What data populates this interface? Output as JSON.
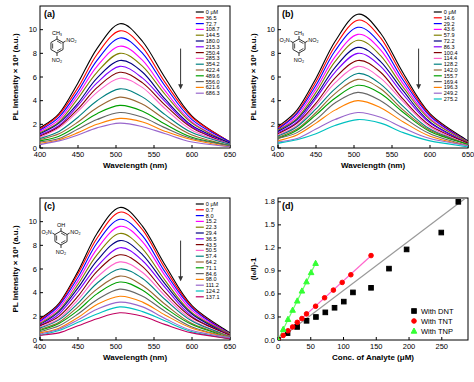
{
  "chart_data": [
    {
      "type": "line",
      "title": "(a)",
      "xlabel": "Wavelength (nm)",
      "ylabel": "PL Intensity × 10³ (a.u.)",
      "annotations": [
        "CH₃",
        "NO₂",
        "NO₂"
      ],
      "xlim": [
        400,
        650
      ],
      "xticks": [
        400,
        450,
        500,
        550,
        600,
        650
      ],
      "ylim": [
        0,
        12
      ],
      "yticks": [
        0,
        2,
        4,
        6,
        8,
        10
      ],
      "legend": "top-right",
      "x": [
        400,
        425,
        450,
        475,
        505,
        535,
        565,
        600,
        650
      ],
      "series": [
        {
          "name": "0 μM",
          "color": "#000000",
          "values": [
            1.7,
            2.9,
            5.5,
            8.4,
            10.5,
            9.0,
            5.9,
            2.7,
            0.5
          ]
        },
        {
          "name": "36.5",
          "color": "#ff0000",
          "values": [
            1.6,
            2.8,
            5.1,
            7.9,
            9.9,
            8.5,
            5.5,
            2.6,
            0.5
          ]
        },
        {
          "name": "72.7",
          "color": "#0000ff",
          "values": [
            1.5,
            2.6,
            4.8,
            7.4,
            9.3,
            8.0,
            5.2,
            2.4,
            0.5
          ]
        },
        {
          "name": "108.7",
          "color": "#ff00ff",
          "values": [
            1.4,
            2.4,
            4.5,
            6.9,
            8.6,
            7.4,
            4.8,
            2.2,
            0.4
          ]
        },
        {
          "name": "144.5",
          "color": "#808000",
          "values": [
            1.3,
            2.2,
            4.2,
            6.4,
            8.0,
            6.9,
            4.5,
            2.1,
            0.4
          ]
        },
        {
          "name": "180.0",
          "color": "#000080",
          "values": [
            1.2,
            2.1,
            3.8,
            5.9,
            7.4,
            6.4,
            4.1,
            1.9,
            0.4
          ]
        },
        {
          "name": "215.3",
          "color": "#8000ff",
          "values": [
            1.1,
            1.9,
            3.6,
            5.5,
            6.9,
            5.9,
            3.9,
            1.8,
            0.3
          ]
        },
        {
          "name": "250.4",
          "color": "#800000",
          "values": [
            1.0,
            1.8,
            3.3,
            5.1,
            6.4,
            5.5,
            3.6,
            1.7,
            0.3
          ]
        },
        {
          "name": "285.3",
          "color": "#ff66cc",
          "values": [
            0.9,
            1.7,
            3.1,
            4.7,
            5.9,
            5.1,
            3.3,
            1.5,
            0.3
          ]
        },
        {
          "name": "354.2",
          "color": "#008080",
          "values": [
            0.8,
            1.4,
            2.6,
            4.0,
            5.0,
            4.3,
            2.8,
            1.3,
            0.3
          ]
        },
        {
          "name": "422.4",
          "color": "#996633",
          "values": [
            0.7,
            1.2,
            2.2,
            3.4,
            4.3,
            3.7,
            2.4,
            1.1,
            0.2
          ]
        },
        {
          "name": "489.6",
          "color": "#00a000",
          "values": [
            0.6,
            1.0,
            1.9,
            2.9,
            3.6,
            3.1,
            2.0,
            0.9,
            0.2
          ]
        },
        {
          "name": "556.0",
          "color": "#666666",
          "values": [
            0.5,
            0.8,
            1.6,
            2.4,
            3.0,
            2.6,
            1.7,
            0.8,
            0.2
          ]
        },
        {
          "name": "621.6",
          "color": "#ff8000",
          "values": [
            0.4,
            0.7,
            1.3,
            2.0,
            2.5,
            2.2,
            1.4,
            0.7,
            0.1
          ]
        },
        {
          "name": "686.3",
          "color": "#9966cc",
          "values": [
            0.3,
            0.6,
            1.1,
            1.7,
            2.1,
            1.8,
            1.2,
            0.5,
            0.1
          ]
        }
      ]
    },
    {
      "type": "line",
      "title": "(b)",
      "xlabel": "Wavelength (nm)",
      "ylabel": "PL Intensity × 10³ (a.u.)",
      "annotations": [
        "CH₃",
        "O₂N",
        "NO₂",
        "NO₂"
      ],
      "xlim": [
        400,
        650
      ],
      "xticks": [
        400,
        450,
        500,
        550,
        600,
        650
      ],
      "ylim": [
        0,
        12
      ],
      "yticks": [
        0,
        2,
        4,
        6,
        8,
        10
      ],
      "legend": "top-right",
      "x": [
        400,
        425,
        450,
        475,
        505,
        535,
        565,
        600,
        650
      ],
      "series": [
        {
          "name": "0 μM",
          "color": "#000000",
          "values": [
            1.8,
            3.2,
            5.9,
            9.0,
            11.3,
            9.7,
            6.3,
            2.9,
            0.6
          ]
        },
        {
          "name": "14.6",
          "color": "#ff0000",
          "values": [
            1.7,
            3.0,
            5.6,
            8.6,
            10.8,
            9.3,
            6.0,
            2.8,
            0.5
          ]
        },
        {
          "name": "29.2",
          "color": "#0000ff",
          "values": [
            1.6,
            2.9,
            5.3,
            8.2,
            10.2,
            8.8,
            5.7,
            2.7,
            0.5
          ]
        },
        {
          "name": "43.6",
          "color": "#ff00ff",
          "values": [
            1.5,
            2.7,
            5.0,
            7.7,
            9.6,
            8.3,
            5.4,
            2.5,
            0.5
          ]
        },
        {
          "name": "57.9",
          "color": "#808000",
          "values": [
            1.5,
            2.5,
            4.7,
            7.3,
            9.1,
            7.8,
            5.1,
            2.4,
            0.5
          ]
        },
        {
          "name": "72.2",
          "color": "#000080",
          "values": [
            1.4,
            2.4,
            4.4,
            6.8,
            8.5,
            7.3,
            4.8,
            2.2,
            0.4
          ]
        },
        {
          "name": "86.3",
          "color": "#8000ff",
          "values": [
            1.3,
            2.2,
            4.2,
            6.4,
            8.0,
            6.9,
            4.5,
            2.1,
            0.4
          ]
        },
        {
          "name": "100.4",
          "color": "#800000",
          "values": [
            1.2,
            2.1,
            3.8,
            5.9,
            7.4,
            6.4,
            4.1,
            1.9,
            0.4
          ]
        },
        {
          "name": "114.4",
          "color": "#ff66cc",
          "values": [
            1.1,
            1.9,
            3.6,
            5.5,
            6.9,
            5.9,
            3.9,
            1.8,
            0.3
          ]
        },
        {
          "name": "128.2",
          "color": "#008080",
          "values": [
            1.0,
            1.8,
            3.3,
            5.0,
            6.3,
            5.4,
            3.5,
            1.6,
            0.3
          ]
        },
        {
          "name": "142.0",
          "color": "#996633",
          "values": [
            0.9,
            1.6,
            3.0,
            4.6,
            5.8,
            5.0,
            3.2,
            1.5,
            0.3
          ]
        },
        {
          "name": "155.7",
          "color": "#00a000",
          "values": [
            0.8,
            1.5,
            2.8,
            4.2,
            5.3,
            4.6,
            3.0,
            1.4,
            0.3
          ]
        },
        {
          "name": "169.4",
          "color": "#666666",
          "values": [
            0.8,
            1.3,
            2.4,
            3.8,
            4.7,
            4.0,
            2.6,
            1.2,
            0.2
          ]
        },
        {
          "name": "196.3",
          "color": "#ff8000",
          "values": [
            0.6,
            1.1,
            2.1,
            3.2,
            4.0,
            3.4,
            2.2,
            1.0,
            0.2
          ]
        },
        {
          "name": "249.2",
          "color": "#9966cc",
          "values": [
            0.5,
            0.8,
            1.6,
            2.4,
            3.0,
            2.6,
            1.7,
            0.8,
            0.2
          ]
        },
        {
          "name": "275.2",
          "color": "#00c0c0",
          "values": [
            0.4,
            0.7,
            1.2,
            1.9,
            2.4,
            2.1,
            1.3,
            0.6,
            0.1
          ]
        }
      ]
    },
    {
      "type": "line",
      "title": "(c)",
      "xlabel": "Wavelength (nm)",
      "ylabel": "PL Intensity × 10³ (a.u.)",
      "annotations": [
        "OH",
        "O₂N",
        "NO₂",
        "NO₂"
      ],
      "xlim": [
        400,
        650
      ],
      "xticks": [
        400,
        450,
        500,
        550,
        600,
        650
      ],
      "ylim": [
        0,
        12
      ],
      "yticks": [
        0,
        2,
        4,
        6,
        8,
        10
      ],
      "legend": "top-right",
      "x": [
        400,
        425,
        450,
        475,
        505,
        535,
        565,
        600,
        650
      ],
      "series": [
        {
          "name": "0 μM",
          "color": "#000000",
          "values": [
            1.8,
            3.1,
            5.8,
            9.0,
            11.2,
            9.6,
            6.3,
            2.9,
            0.6
          ]
        },
        {
          "name": "0.7",
          "color": "#ff0000",
          "values": [
            1.7,
            3.0,
            5.6,
            8.6,
            10.8,
            9.3,
            6.0,
            2.8,
            0.5
          ]
        },
        {
          "name": "8.0",
          "color": "#0000ff",
          "values": [
            1.6,
            2.9,
            5.3,
            8.2,
            10.2,
            8.8,
            5.7,
            2.7,
            0.5
          ]
        },
        {
          "name": "15.2",
          "color": "#ff00ff",
          "values": [
            1.5,
            2.7,
            5.0,
            7.7,
            9.6,
            8.3,
            5.4,
            2.5,
            0.5
          ]
        },
        {
          "name": "22.3",
          "color": "#808000",
          "values": [
            1.4,
            2.5,
            4.7,
            7.2,
            9.0,
            7.7,
            5.0,
            2.3,
            0.5
          ]
        },
        {
          "name": "29.4",
          "color": "#000080",
          "values": [
            1.3,
            2.4,
            4.4,
            6.7,
            8.4,
            7.2,
            4.7,
            2.2,
            0.4
          ]
        },
        {
          "name": "36.5",
          "color": "#8000ff",
          "values": [
            1.2,
            2.2,
            4.1,
            6.2,
            7.8,
            6.7,
            4.4,
            2.0,
            0.4
          ]
        },
        {
          "name": "43.5",
          "color": "#800000",
          "values": [
            1.2,
            2.0,
            3.7,
            5.8,
            7.2,
            6.2,
            4.0,
            1.9,
            0.4
          ]
        },
        {
          "name": "50.5",
          "color": "#ff66cc",
          "values": [
            1.1,
            1.8,
            3.4,
            5.3,
            6.6,
            5.7,
            3.7,
            1.7,
            0.3
          ]
        },
        {
          "name": "57.4",
          "color": "#008080",
          "values": [
            1.0,
            1.7,
            3.1,
            4.8,
            6.0,
            5.2,
            3.4,
            1.6,
            0.3
          ]
        },
        {
          "name": "64.2",
          "color": "#996633",
          "values": [
            0.9,
            1.5,
            2.8,
            4.3,
            5.4,
            4.6,
            3.0,
            1.4,
            0.3
          ]
        },
        {
          "name": "71.1",
          "color": "#00a000",
          "values": [
            0.8,
            1.4,
            2.5,
            3.9,
            4.9,
            4.2,
            2.7,
            1.3,
            0.2
          ]
        },
        {
          "name": "84.6",
          "color": "#666666",
          "values": [
            0.7,
            1.2,
            2.2,
            3.4,
            4.3,
            3.7,
            2.4,
            1.1,
            0.2
          ]
        },
        {
          "name": "98.0",
          "color": "#ff8000",
          "values": [
            0.6,
            1.0,
            1.9,
            3.0,
            3.7,
            3.2,
            2.1,
            1.0,
            0.2
          ]
        },
        {
          "name": "111.2",
          "color": "#9966cc",
          "values": [
            0.5,
            0.9,
            1.7,
            2.6,
            3.2,
            2.8,
            1.8,
            0.8,
            0.2
          ]
        },
        {
          "name": "124.2",
          "color": "#00c0c0",
          "values": [
            0.4,
            0.8,
            1.5,
            2.2,
            2.8,
            2.4,
            1.6,
            0.7,
            0.1
          ]
        },
        {
          "name": "137.1",
          "color": "#c00060",
          "values": [
            0.4,
            0.6,
            1.2,
            1.8,
            2.3,
            2.0,
            1.3,
            0.6,
            0.1
          ]
        }
      ]
    },
    {
      "type": "scatter",
      "title": "(d)",
      "xlabel": "Conc. of Analyte (μM)",
      "ylabel": "(I₀/I)-1",
      "xlim": [
        0,
        290
      ],
      "xticks": [
        0,
        50,
        100,
        150,
        200,
        250
      ],
      "ylim": [
        0,
        1.85
      ],
      "yticks": [
        {
          "value": 0,
          "label": "0.0"
        },
        {
          "value": 0.3,
          "label": "0.3"
        },
        {
          "value": 0.6,
          "label": "0.6"
        },
        {
          "value": 0.9,
          "label": "0.9"
        },
        {
          "value": 1.2,
          "label": "1.2"
        },
        {
          "value": 1.5,
          "label": "1.5"
        },
        {
          "value": 1.8,
          "label": "1.8"
        }
      ],
      "legend": "bottom-right",
      "series": [
        {
          "type": "line",
          "line_style": "solid",
          "color": "#999999",
          "x": [
            0,
            285
          ],
          "values": [
            0,
            1.84
          ]
        },
        {
          "type": "line",
          "line_style": "solid",
          "color": "#ff66cc",
          "x": [
            0,
            145
          ],
          "values": [
            0,
            1.12
          ]
        },
        {
          "type": "line",
          "line_style": "solid",
          "color": "#66ff66",
          "x": [
            0,
            58
          ],
          "values": [
            0,
            1.01
          ]
        },
        {
          "name": "With DNT",
          "type": "scatter",
          "marker": "square",
          "color": "#000000",
          "x": [
            0,
            14.6,
            29.2,
            43.6,
            57.9,
            72.2,
            86.3,
            100.4,
            114.4,
            142.0,
            169.4,
            196.3,
            249.2,
            275.2
          ],
          "values": [
            0,
            0.09,
            0.17,
            0.25,
            0.3,
            0.36,
            0.42,
            0.5,
            0.62,
            0.68,
            0.93,
            1.18,
            1.4,
            1.8
          ]
        },
        {
          "name": "With TNT",
          "type": "scatter",
          "marker": "circle",
          "color": "#ff0000",
          "x": [
            0,
            8.0,
            15.2,
            22.3,
            29.4,
            36.5,
            43.5,
            57.4,
            71.1,
            84.6,
            98.0,
            111.2,
            142.0
          ],
          "values": [
            0,
            0.06,
            0.12,
            0.17,
            0.23,
            0.28,
            0.34,
            0.44,
            0.55,
            0.65,
            0.75,
            0.85,
            1.1
          ]
        },
        {
          "name": "With TNP",
          "type": "scatter",
          "marker": "triangle",
          "color": "#33ff33",
          "x": [
            0,
            8.0,
            15.2,
            22.3,
            29.4,
            36.5,
            43.5,
            50.5,
            57.4
          ],
          "values": [
            0,
            0.14,
            0.27,
            0.39,
            0.51,
            0.64,
            0.76,
            0.88,
            1.0
          ]
        }
      ]
    }
  ]
}
